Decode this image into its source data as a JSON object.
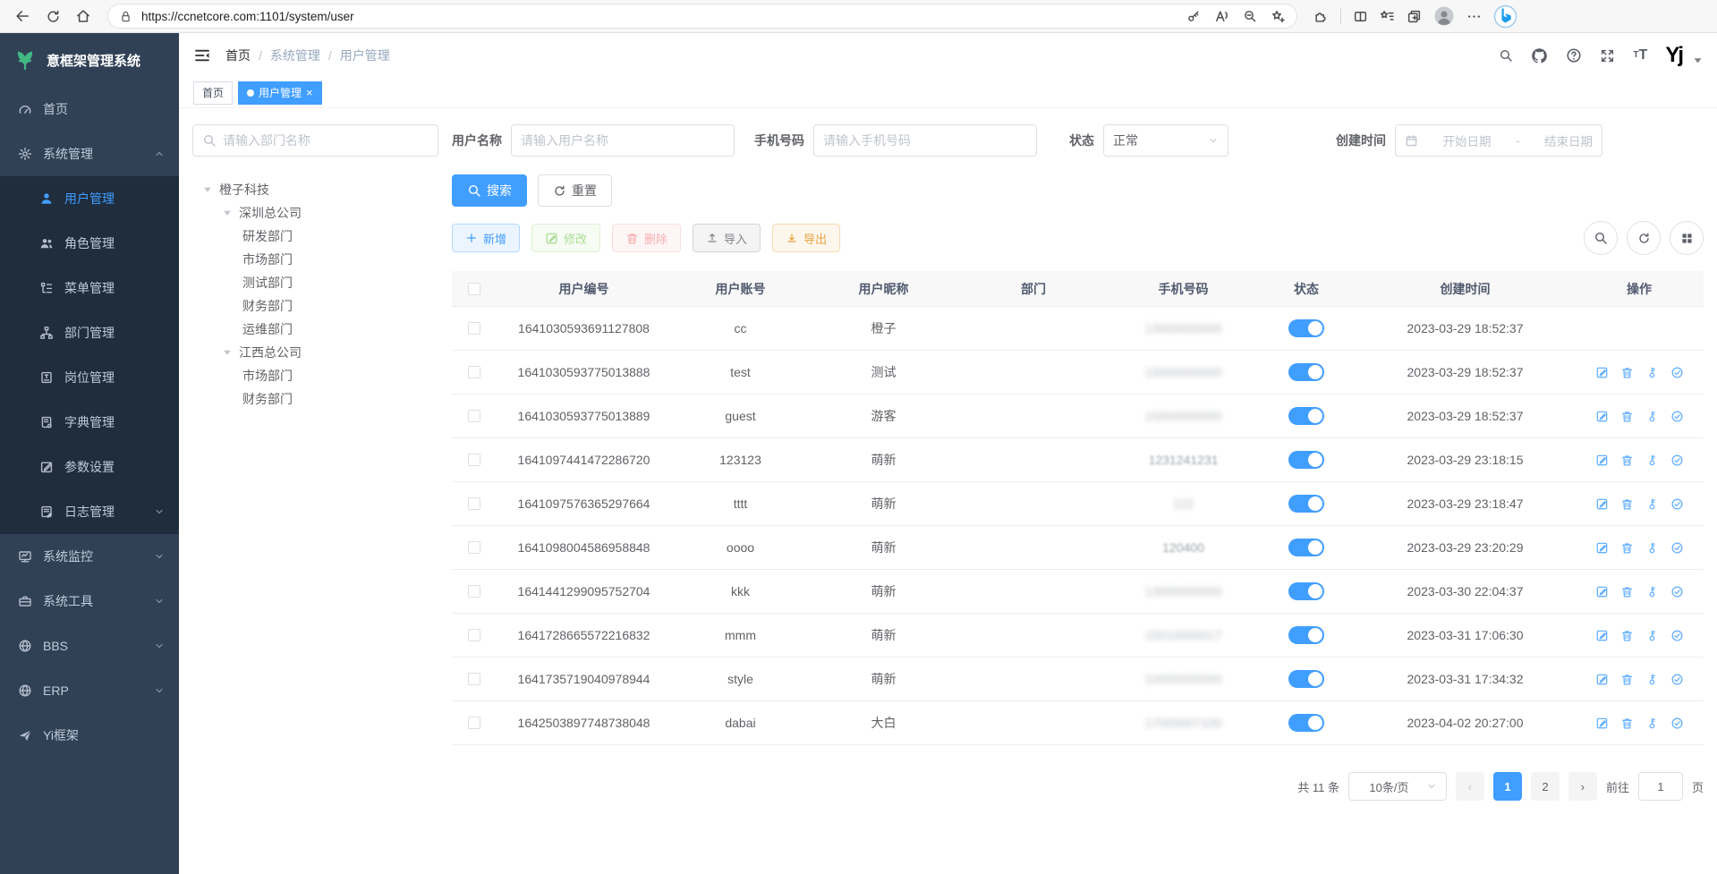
{
  "browser": {
    "url": "https://ccnetcore.com:1101/system/user",
    "left_icons": [
      "back-icon",
      "reload-icon",
      "home-icon"
    ],
    "pill_icons_left": [
      "lock-icon"
    ],
    "pill_icons_right": [
      "key2-icon",
      "read-aloud-icon",
      "zoom-out-icon",
      "star-plus-icon"
    ],
    "right_icons": [
      "extensions-icon",
      "split-screen-icon",
      "favorites-bar-icon",
      "collections-icon",
      "profile-icon",
      "more-icon",
      "bing-icon"
    ]
  },
  "sidebar": {
    "logo": "意框架管理系统",
    "logo_icon": "sprout-icon",
    "items": [
      {
        "id": "home",
        "label": "首页",
        "icon": "dashboard-icon"
      },
      {
        "id": "system",
        "label": "系统管理",
        "icon": "gear-icon",
        "caret": "up",
        "children": [
          {
            "id": "user",
            "label": "用户管理",
            "icon": "user-icon",
            "active": true
          },
          {
            "id": "role",
            "label": "角色管理",
            "icon": "users-icon"
          },
          {
            "id": "menu",
            "label": "菜单管理",
            "icon": "menu-tree-icon"
          },
          {
            "id": "dept",
            "label": "部门管理",
            "icon": "org-tree-icon"
          },
          {
            "id": "post",
            "label": "岗位管理",
            "icon": "badge-icon"
          },
          {
            "id": "dict",
            "label": "字典管理",
            "icon": "dict-icon"
          },
          {
            "id": "config",
            "label": "参数设置",
            "icon": "edit-icon"
          },
          {
            "id": "log",
            "label": "日志管理",
            "icon": "log-icon",
            "caret": "down"
          }
        ]
      },
      {
        "id": "monitor",
        "label": "系统监控",
        "icon": "monitor-icon",
        "caret": "down"
      },
      {
        "id": "tool",
        "label": "系统工具",
        "icon": "toolbox-icon",
        "caret": "down"
      },
      {
        "id": "bbs",
        "label": "BBS",
        "icon": "globe-icon",
        "caret": "down"
      },
      {
        "id": "erp",
        "label": "ERP",
        "icon": "globe-icon",
        "caret": "down"
      },
      {
        "id": "yi",
        "label": "Yi框架",
        "icon": "send-icon"
      }
    ]
  },
  "navbar": {
    "breadcrumb": [
      "首页",
      "系统管理",
      "用户管理"
    ],
    "separator": "/",
    "right_icons": [
      "search-icon",
      "github-icon",
      "question-icon",
      "expand-icon",
      "font-size-icon"
    ],
    "logo_text": "Yj"
  },
  "tabs": [
    {
      "label": "首页",
      "active": false
    },
    {
      "label": "用户管理",
      "active": true,
      "closable": true,
      "close_glyph": "×"
    }
  ],
  "filters": {
    "dept_placeholder": "请输入部门名称",
    "username_label": "用户名称",
    "username_placeholder": "请输入用户名称",
    "phone_label": "手机号码",
    "phone_placeholder": "请输入手机号码",
    "status_label": "状态",
    "status_value": "正常",
    "date_label": "创建时间",
    "date_start": "开始日期",
    "date_separator": "-",
    "date_end": "结束日期"
  },
  "tree": [
    {
      "label": "橙子科技",
      "children": [
        {
          "label": "深圳总公司",
          "children": [
            {
              "label": "研发部门"
            },
            {
              "label": "市场部门"
            },
            {
              "label": "测试部门"
            },
            {
              "label": "财务部门"
            },
            {
              "label": "运维部门"
            }
          ]
        },
        {
          "label": "江西总公司",
          "children": [
            {
              "label": "市场部门"
            },
            {
              "label": "财务部门"
            }
          ]
        }
      ]
    }
  ],
  "toolbar": {
    "search": {
      "label": "搜索",
      "icon": "search-icon"
    },
    "reset": {
      "label": "重置",
      "icon": "refresh-icon"
    },
    "actions": [
      {
        "id": "add",
        "label": "新增",
        "icon": "plus-icon",
        "style": "plain-primary",
        "disabled": false
      },
      {
        "id": "edit",
        "label": "修改",
        "icon": "edit-square-icon",
        "style": "plain-success",
        "disabled": true
      },
      {
        "id": "delete",
        "label": "删除",
        "icon": "trash-icon",
        "style": "plain-danger",
        "disabled": true
      },
      {
        "id": "import",
        "label": "导入",
        "icon": "upload-icon",
        "style": "plain-info",
        "disabled": false
      },
      {
        "id": "export",
        "label": "导出",
        "icon": "download-icon",
        "style": "plain-warning",
        "disabled": false
      }
    ],
    "tools": [
      "search-icon",
      "refresh-icon",
      "grid-icon"
    ]
  },
  "table": {
    "headers": [
      "",
      "用户编号",
      "用户账号",
      "用户昵称",
      "部门",
      "手机号码",
      "状态",
      "创建时间",
      "操作"
    ],
    "op_icons": [
      "edit-square-icon",
      "trash-icon",
      "key-icon",
      "check-circle-icon"
    ],
    "rows": [
      {
        "id": "1641030593691127808",
        "account": "cc",
        "nickname": "橙子",
        "dept": "",
        "phone": "13000000000",
        "mask": "heavy",
        "status_on": true,
        "created": "2023-03-29 18:52:37",
        "ops": false
      },
      {
        "id": "1641030593775013888",
        "account": "test",
        "nickname": "测试",
        "dept": "",
        "phone": "15000000000",
        "mask": "heavy",
        "status_on": true,
        "created": "2023-03-29 18:52:37",
        "ops": true
      },
      {
        "id": "1641030593775013889",
        "account": "guest",
        "nickname": "游客",
        "dept": "",
        "phone": "15000000000",
        "mask": "heavy",
        "status_on": true,
        "created": "2023-03-29 18:52:37",
        "ops": true
      },
      {
        "id": "1641097441472286720",
        "account": "123123",
        "nickname": "萌新",
        "dept": "",
        "phone": "1231241231",
        "mask": "light",
        "status_on": true,
        "created": "2023-03-29 23:18:15",
        "ops": true
      },
      {
        "id": "1641097576365297664",
        "account": "tttt",
        "nickname": "萌新",
        "dept": "",
        "phone": "122",
        "mask": "heavy",
        "status_on": true,
        "created": "2023-03-29 23:18:47",
        "ops": true
      },
      {
        "id": "1641098004586958848",
        "account": "oooo",
        "nickname": "萌新",
        "dept": "",
        "phone": "120400",
        "mask": "light",
        "status_on": true,
        "created": "2023-03-29 23:20:29",
        "ops": true
      },
      {
        "id": "1641441299095752704",
        "account": "kkk",
        "nickname": "萌新",
        "dept": "",
        "phone": "13000000000",
        "mask": "heavy",
        "status_on": true,
        "created": "2023-03-30 22:04:37",
        "ops": true
      },
      {
        "id": "1641728665572216832",
        "account": "mmm",
        "nickname": "萌新",
        "dept": "",
        "phone": "15010000017",
        "mask": "heavy",
        "status_on": true,
        "created": "2023-03-31 17:06:30",
        "ops": true
      },
      {
        "id": "1641735719040978944",
        "account": "style",
        "nickname": "萌新",
        "dept": "",
        "phone": "10000000000",
        "mask": "heavy",
        "status_on": true,
        "created": "2023-03-31 17:34:32",
        "ops": true
      },
      {
        "id": "1642503897748738048",
        "account": "dabai",
        "nickname": "大白",
        "dept": "",
        "phone": "17005007100",
        "mask": "heavy",
        "status_on": true,
        "created": "2023-04-02 20:27:00",
        "ops": true
      }
    ]
  },
  "pagination": {
    "total_label": "共 11 条",
    "page_size": "10条/页",
    "pages": [
      "1",
      "2"
    ],
    "current": "1",
    "prev_glyph": "‹",
    "next_glyph": "›",
    "jump_label": "前往",
    "jump_value": "1",
    "jump_suffix": "页"
  }
}
